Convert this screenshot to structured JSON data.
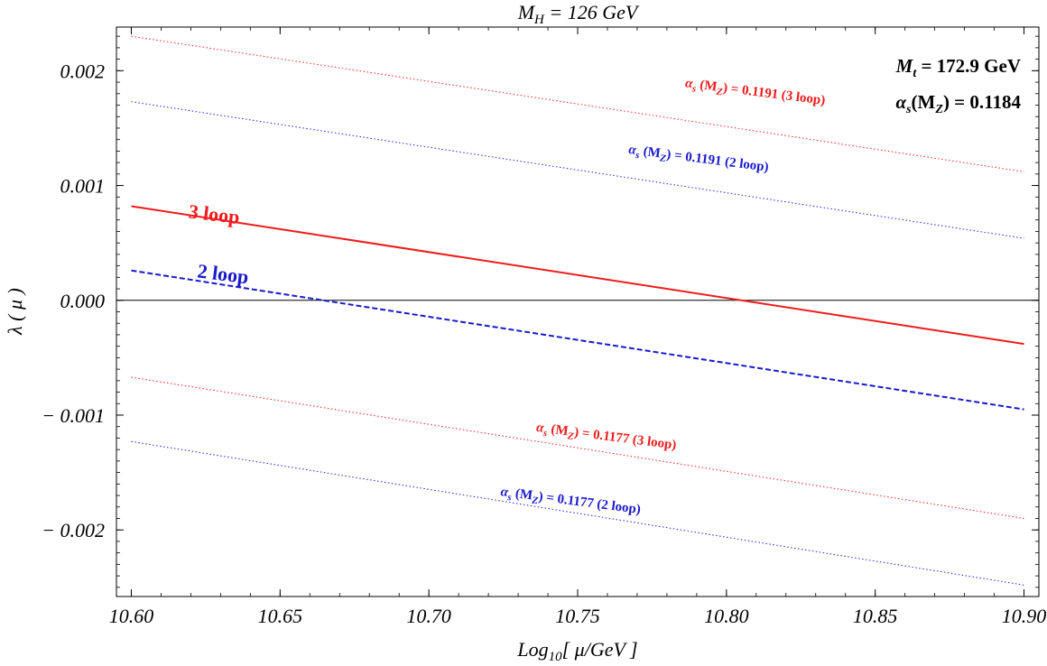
{
  "chart_data": {
    "type": "line",
    "title": "M_H = 126 GeV",
    "title_parts": {
      "base": "M",
      "sub": "H",
      "rest": " = 126 GeV"
    },
    "xlabel": "Log10[μ/GeV]",
    "xlabel_parts": {
      "pre": "Log",
      "sub": "10",
      "rest": "[ μ/GeV ]"
    },
    "ylabel": "λ ( μ )",
    "xlim": [
      10.595,
      10.905
    ],
    "ylim": [
      -0.00258,
      0.00238
    ],
    "x_ticks": [
      10.6,
      10.65,
      10.7,
      10.75,
      10.8,
      10.85,
      10.9
    ],
    "x_tick_labels": [
      "10.60",
      "10.65",
      "10.70",
      "10.75",
      "10.80",
      "10.85",
      "10.90"
    ],
    "y_ticks": [
      0.002,
      0.001,
      0.0,
      -0.001,
      -0.002
    ],
    "y_tick_labels": [
      "0.002",
      "0.001",
      "0.000",
      "− 0.001",
      "− 0.002"
    ],
    "grid": false,
    "zero_line": true,
    "series": [
      {
        "key": "s3_hi",
        "x": [
          10.6,
          10.9
        ],
        "values": [
          0.0023,
          0.00112
        ],
        "color": "#ee2222",
        "style": "dotted",
        "width": 1
      },
      {
        "key": "s2_hi",
        "x": [
          10.6,
          10.9
        ],
        "values": [
          0.00173,
          0.00054
        ],
        "color": "#2222dd",
        "style": "dotted",
        "width": 1
      },
      {
        "key": "s3",
        "x": [
          10.6,
          10.9
        ],
        "values": [
          0.00082,
          -0.00038
        ],
        "color": "#ee1c1c",
        "style": "solid",
        "width": 2
      },
      {
        "key": "s2",
        "x": [
          10.6,
          10.9
        ],
        "values": [
          0.00026,
          -0.00095
        ],
        "color": "#1a1acc",
        "style": "dashed",
        "width": 2
      },
      {
        "key": "s3_lo",
        "x": [
          10.6,
          10.9
        ],
        "values": [
          -0.00067,
          -0.0019
        ],
        "color": "#ee2222",
        "style": "dotted",
        "width": 1
      },
      {
        "key": "s2_lo",
        "x": [
          10.6,
          10.9
        ],
        "values": [
          -0.00123,
          -0.00248
        ],
        "color": "#2222dd",
        "style": "dotted",
        "width": 1
      }
    ],
    "annotations": [
      {
        "key": "a3_hi",
        "prefix": "α",
        "sub1": "s",
        "mid": " (M",
        "sub2": "Z",
        "text": ") = 0.1191  (3 loop)",
        "x": 10.786,
        "y": 0.00186,
        "angle": 7.2,
        "color": "#ee1c1c",
        "size": 15
      },
      {
        "key": "a2_hi",
        "prefix": "α",
        "sub1": "s",
        "mid": " (M",
        "sub2": "Z",
        "text": ") = 0.1191  (2 loop)",
        "x": 10.767,
        "y": 0.00128,
        "angle": 7.3,
        "color": "#1a1acc",
        "size": 15
      },
      {
        "key": "a3",
        "text": "3 loop",
        "x": 10.619,
        "y": 0.00072,
        "angle": 7.0,
        "color": "#ee1c1c",
        "size": 22
      },
      {
        "key": "a2",
        "text": "2 loop",
        "x": 10.622,
        "y": 0.0002,
        "angle": 7.2,
        "color": "#1a1acc",
        "size": 22
      },
      {
        "key": "a3_lo",
        "prefix": "α",
        "sub1": "s",
        "mid": " (M",
        "sub2": "Z",
        "text": ") = 0.1177  (3 loop)",
        "x": 10.736,
        "y": -0.00114,
        "angle": 7.3,
        "color": "#ee1c1c",
        "size": 15
      },
      {
        "key": "a2_lo",
        "prefix": "α",
        "sub1": "s",
        "mid": " (M",
        "sub2": "Z",
        "text": ") = 0.1177  (2 loop)",
        "x": 10.724,
        "y": -0.0017,
        "angle": 7.4,
        "color": "#1a1acc",
        "size": 15
      }
    ],
    "legend": {
      "position": "top-right",
      "line1": {
        "base": "M",
        "sub": "t",
        "text": "  = 172.9 GeV"
      },
      "line2": {
        "prefix": "α",
        "sub1": "s",
        "mid": "(M",
        "sub2": "Z",
        "text": ") = 0.1184"
      }
    }
  }
}
